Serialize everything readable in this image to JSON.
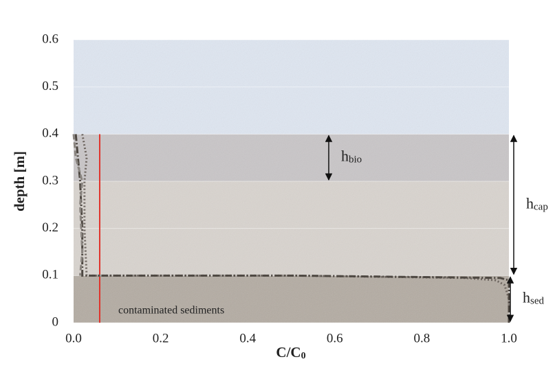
{
  "chart_data": {
    "type": "line",
    "ylabel": "depth [m]",
    "xlabel": {
      "text": "C/C",
      "sub": "0"
    },
    "xlim": [
      0,
      1
    ],
    "ylim": [
      0,
      0.6
    ],
    "xticks": [
      {
        "value": 0,
        "label": "0.0"
      },
      0.2,
      0.4,
      0.6,
      0.8,
      {
        "value": 1,
        "label": "1.0"
      }
    ],
    "yticks": [
      0,
      0.1,
      0.2,
      0.3,
      0.4,
      0.5,
      0.6
    ],
    "grid": true,
    "layers": [
      {
        "from": 0,
        "to": 0.1,
        "color": "#b4aca3"
      },
      {
        "from": 0.1,
        "to": 0.3,
        "color": "#d9d4cf"
      },
      {
        "from": 0.3,
        "to": 0.4,
        "color": "#c9c6c8"
      },
      {
        "from": 0.4,
        "to": 0.6,
        "color": "#dfe6f1"
      }
    ],
    "series": [
      {
        "color": "#e0332b",
        "style": "solid",
        "x": [
          0.06,
          0.06
        ],
        "values": [
          0,
          0.4
        ]
      },
      {
        "color": "#6e6660",
        "style": "dotted",
        "x": [
          0.02,
          0.03,
          0.025,
          0.025,
          0.03,
          0.5,
          0.9,
          0.97,
          0.99,
          1.0,
          1.0
        ],
        "values": [
          0.4,
          0.35,
          0.3,
          0.2,
          0.1,
          0.1,
          0.095,
          0.09,
          0.08,
          0.05,
          0
        ]
      },
      {
        "color": "#4e4842",
        "style": "dashdot",
        "x": [
          0.005,
          0.01,
          0.015,
          0.02,
          0.02,
          0.5,
          0.98,
          1.0,
          1.0
        ],
        "values": [
          0.4,
          0.35,
          0.3,
          0.2,
          0.1,
          0.1,
          0.095,
          0.09,
          0
        ]
      },
      {
        "color": "#8a8580",
        "style": "dashed",
        "x": [
          0.0,
          0.005,
          0.02,
          0.015,
          0.02,
          0.015
        ],
        "values": [
          0.4,
          0.35,
          0.3,
          0.25,
          0.15,
          0.1
        ]
      }
    ],
    "annotations": [
      {
        "text": "h",
        "sub": "bio",
        "range": [
          0.3,
          0.4
        ]
      },
      {
        "text": "h",
        "sub": "cap",
        "range": [
          0.1,
          0.4
        ]
      },
      {
        "text": "h",
        "sub": "sed",
        "range": [
          0,
          0.1
        ]
      }
    ],
    "sediment_label": "contaminated sediments"
  }
}
